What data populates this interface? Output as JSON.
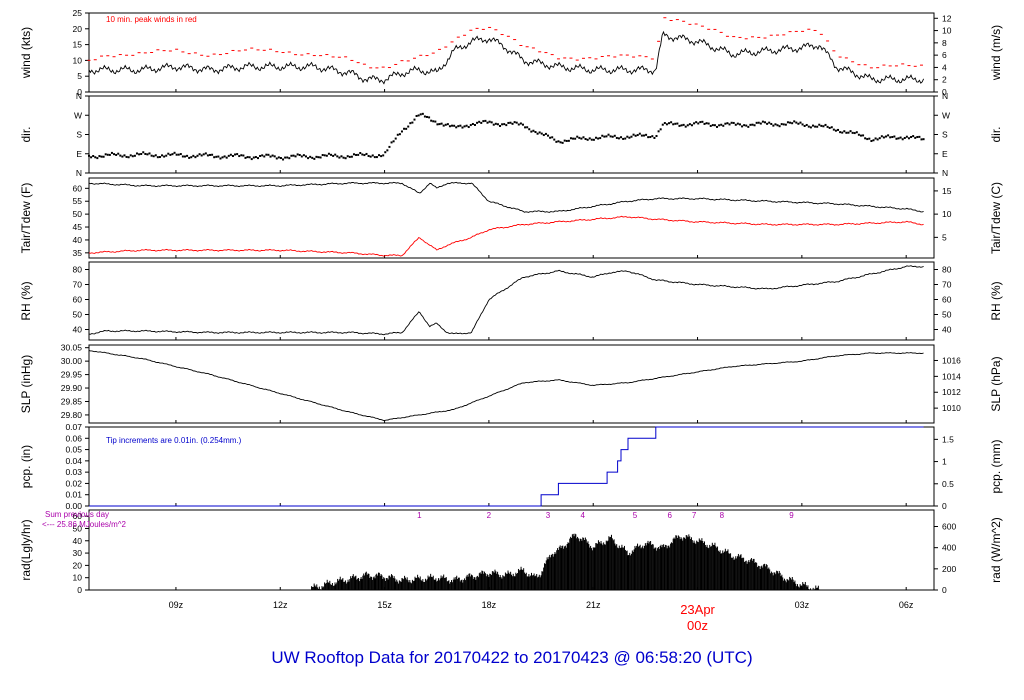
{
  "title": "UW Rooftop Data for 20170422  to  20170423 @ 06:58:20  (UTC)",
  "colors": {
    "series": "#000000",
    "dewpoint": "#ff0000",
    "peak": "#ff0000",
    "note": "#0000cc",
    "sun": "#aa00aa",
    "date": "#ff0000",
    "title": "#0000cc"
  },
  "chart_data": [
    {
      "panel": "wind",
      "type": "line",
      "ylabel": "wind (kts)",
      "ylabel_right": "wind (m/s)",
      "ylim": [
        0,
        25
      ],
      "yticks": [
        "0",
        "5",
        "10",
        "15",
        "20",
        "25"
      ],
      "yticks_right": [
        "0",
        "2",
        "4",
        "6",
        "8",
        "10",
        "12"
      ],
      "annotation": "10 min. peak winds in red",
      "x": [
        6.5,
        7,
        8,
        9,
        10,
        11,
        12,
        13,
        14,
        14.5,
        15,
        15.5,
        16,
        16.5,
        17,
        17.5,
        18,
        18.5,
        19,
        20,
        21,
        22,
        22.8,
        23,
        23.5,
        24,
        25,
        26,
        27,
        27.5,
        28,
        29,
        30.5
      ],
      "series": [
        {
          "name": "sustained",
          "values": [
            7,
            7,
            7,
            8,
            7,
            8,
            8,
            8,
            6,
            4,
            4,
            6,
            7,
            6,
            13,
            16,
            17,
            14,
            10,
            8,
            7,
            7,
            7,
            18,
            17,
            16,
            12,
            13,
            14,
            15,
            8,
            4,
            4
          ]
        },
        {
          "name": "peak",
          "values": [
            10,
            12,
            12,
            13,
            12,
            13,
            13,
            12,
            10,
            8,
            8,
            10,
            11,
            12,
            16,
            20,
            21,
            18,
            14,
            11,
            11,
            11,
            11,
            24,
            23,
            21,
            17,
            18,
            19,
            19,
            12,
            8,
            8
          ]
        }
      ]
    },
    {
      "panel": "dir",
      "type": "scatter",
      "ylabel": "dir.",
      "ylabel_right": "dir.",
      "yticks": [
        "N",
        "E",
        "S",
        "W",
        "N"
      ],
      "x": [
        6.5,
        8,
        10,
        12,
        14,
        15,
        15.5,
        16,
        16.2,
        16.5,
        17,
        17.5,
        18,
        19,
        19.5,
        20,
        21,
        22,
        22.8,
        23,
        24,
        25,
        26,
        27,
        28,
        29,
        30,
        30.5
      ],
      "values": [
        80,
        85,
        80,
        75,
        80,
        85,
        200,
        270,
        260,
        240,
        210,
        230,
        235,
        225,
        180,
        150,
        165,
        170,
        175,
        225,
        230,
        225,
        230,
        230,
        205,
        160,
        170,
        155
      ]
    },
    {
      "panel": "temp",
      "type": "line",
      "ylabel": "Tair/Tdew (F)",
      "ylabel_right": "Tair/Tdew (C)",
      "ylim": [
        33,
        64
      ],
      "yticks": [
        "35",
        "40",
        "45",
        "50",
        "55",
        "60"
      ],
      "yticks_right": [
        "5",
        "10",
        "15"
      ],
      "x": [
        6.5,
        8,
        10,
        12,
        14,
        15,
        15.5,
        16,
        16.3,
        16.5,
        16.8,
        17.5,
        18,
        19,
        20,
        21,
        22,
        22.8,
        24,
        26,
        28,
        30,
        30.5
      ],
      "series": [
        {
          "name": "Tair",
          "values": [
            62,
            61,
            61,
            61,
            62,
            62,
            62,
            58,
            62,
            60,
            62,
            62,
            55,
            51,
            51,
            53,
            55,
            56,
            56,
            55,
            54,
            52,
            51
          ]
        },
        {
          "name": "Tdew",
          "values": [
            35,
            36,
            36,
            36,
            35,
            34,
            34,
            41,
            38,
            36,
            38,
            41,
            44,
            46,
            47,
            48,
            49,
            48,
            47,
            46,
            46,
            47,
            46
          ]
        }
      ]
    },
    {
      "panel": "rh",
      "type": "line",
      "ylabel": "RH (%)",
      "ylabel_right": "RH (%)",
      "ylim": [
        33,
        85
      ],
      "yticks": [
        "40",
        "50",
        "60",
        "70",
        "80"
      ],
      "x": [
        6.5,
        7,
        8,
        10,
        12,
        14,
        15,
        15.5,
        16,
        16.3,
        16.5,
        16.8,
        17,
        17.5,
        18,
        19,
        20,
        21,
        21.5,
        22,
        22.8,
        24,
        26,
        28,
        30,
        30.5
      ],
      "values": [
        37,
        39,
        39,
        38,
        38,
        38,
        37,
        38,
        52,
        42,
        44,
        38,
        37,
        38,
        60,
        75,
        79,
        75,
        78,
        79,
        73,
        70,
        67,
        72,
        82,
        82
      ]
    },
    {
      "panel": "slp",
      "type": "line",
      "ylabel": "SLP (inHg)",
      "ylabel_right": "SLP (hPa)",
      "ylim": [
        29.77,
        30.06
      ],
      "yticks": [
        "29.80",
        "29.85",
        "29.90",
        "29.95",
        "30.00",
        "30.05"
      ],
      "yticks_right": [
        "1010",
        "1012",
        "1014",
        "1016"
      ],
      "x": [
        6.5,
        8,
        10,
        12,
        14,
        15,
        16,
        17,
        18,
        19,
        20,
        21,
        22,
        23,
        24,
        25,
        26,
        27,
        28,
        29,
        30,
        30.5
      ],
      "values": [
        30.04,
        30.01,
        29.95,
        29.88,
        29.81,
        29.78,
        29.8,
        29.82,
        29.87,
        29.92,
        29.93,
        29.91,
        29.92,
        29.94,
        29.96,
        29.98,
        29.99,
        30.0,
        30.02,
        30.03,
        30.03,
        30.03
      ]
    },
    {
      "panel": "pcp",
      "type": "line",
      "ylabel": "pcp. (in)",
      "ylabel_right": "pcp. (mm)",
      "ylim": [
        0,
        0.07
      ],
      "yticks": [
        "0.00",
        "0.01",
        "0.02",
        "0.03",
        "0.04",
        "0.05",
        "0.06",
        "0.07"
      ],
      "yticks_right": [
        "0",
        "0.5",
        "1",
        "1.5"
      ],
      "annotation": "Tip increments are 0.01in. (0.254mm.)",
      "x": [
        6.5,
        19.5,
        19.5,
        20,
        20,
        21.4,
        21.4,
        21.7,
        21.7,
        21.8,
        21.8,
        22,
        22,
        22.8,
        22.8,
        30.5
      ],
      "values": [
        0,
        0,
        0.01,
        0.01,
        0.02,
        0.02,
        0.03,
        0.03,
        0.04,
        0.04,
        0.05,
        0.05,
        0.06,
        0.06,
        0.07,
        0.07
      ]
    },
    {
      "panel": "rad",
      "type": "area",
      "ylabel": "rad(Lgly/hr)",
      "ylabel_right": "rad (W/m^2)",
      "ylim": [
        0,
        65
      ],
      "yticks": [
        "0",
        "10",
        "20",
        "30",
        "40",
        "50",
        "60"
      ],
      "yticks_right": [
        "0",
        "200",
        "400",
        "600"
      ],
      "sun_note": [
        "Sum previous day",
        "<--- 25.86 MJoules/m^2"
      ],
      "hour_markers": [
        "1",
        "2",
        "3",
        "4",
        "5",
        "6",
        "7",
        "8",
        "9"
      ],
      "hour_marker_x": [
        16,
        18,
        19.7,
        20.7,
        22.2,
        23.2,
        23.9,
        24.7,
        26.7
      ],
      "x": [
        12.7,
        13,
        13.5,
        14,
        14.5,
        15,
        15.5,
        16,
        16.5,
        17,
        17.5,
        18,
        18.5,
        19,
        19.3,
        19.5,
        19.8,
        20,
        20.5,
        21,
        21.5,
        22,
        22.5,
        23,
        23.5,
        24,
        24.5,
        25,
        25.5,
        26,
        26.5,
        27,
        27.5
      ],
      "values": [
        0,
        2,
        6,
        9,
        12,
        11,
        8,
        9,
        10,
        8,
        11,
        14,
        12,
        16,
        10,
        14,
        30,
        32,
        45,
        35,
        42,
        30,
        38,
        34,
        44,
        40,
        35,
        28,
        24,
        18,
        10,
        4,
        0
      ]
    }
  ],
  "x_axis": {
    "ticks": [
      "09z",
      "12z",
      "15z",
      "18z",
      "21z",
      "00z",
      "03z",
      "06z"
    ],
    "tick_hours": [
      9,
      12,
      15,
      18,
      21,
      24,
      27,
      30
    ],
    "date_label": "23Apr",
    "date_tick": "00z",
    "xlim": [
      6.5,
      30.8
    ]
  }
}
